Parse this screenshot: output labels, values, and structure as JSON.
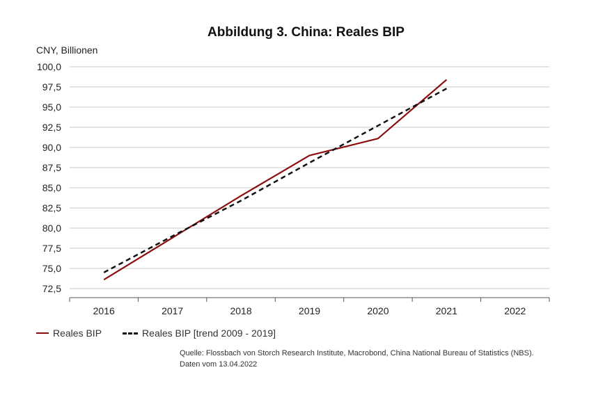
{
  "chart_data": {
    "type": "line",
    "title": "Abbildung 3. China: Reales BIP",
    "ylabel": "CNY, Billionen",
    "xlabel": "",
    "categories": [
      "2016",
      "2017",
      "2018",
      "2019",
      "2020",
      "2021",
      "2022"
    ],
    "ylim": [
      72.5,
      100.0
    ],
    "yticks": [
      "72,5",
      "75,0",
      "77,5",
      "80,0",
      "82,5",
      "85,0",
      "87,5",
      "90,0",
      "92,5",
      "95,0",
      "97,5",
      "100,0"
    ],
    "grid": true,
    "legend_position": "bottom-left",
    "series": [
      {
        "name": "Reales BIP",
        "style": "solid",
        "color": "#8b0d0d",
        "x": [
          2016,
          2017,
          2018,
          2019,
          2020,
          2021
        ],
        "values": [
          73.6,
          78.8,
          84.0,
          89.0,
          91.1,
          98.4
        ]
      },
      {
        "name": "Reales BIP [trend 2009 - 2019]",
        "style": "dashed",
        "color": "#111111",
        "x": [
          2016,
          2017,
          2018,
          2019,
          2020,
          2021
        ],
        "values": [
          74.5,
          79.0,
          83.4,
          88.1,
          92.7,
          97.3
        ]
      }
    ]
  },
  "source": {
    "line1": "Quelle: Flossbach von Storch Research Institute, Macrobond, China National Bureau of Statistics (NBS).",
    "line2": "Daten vom 13.04.2022"
  }
}
